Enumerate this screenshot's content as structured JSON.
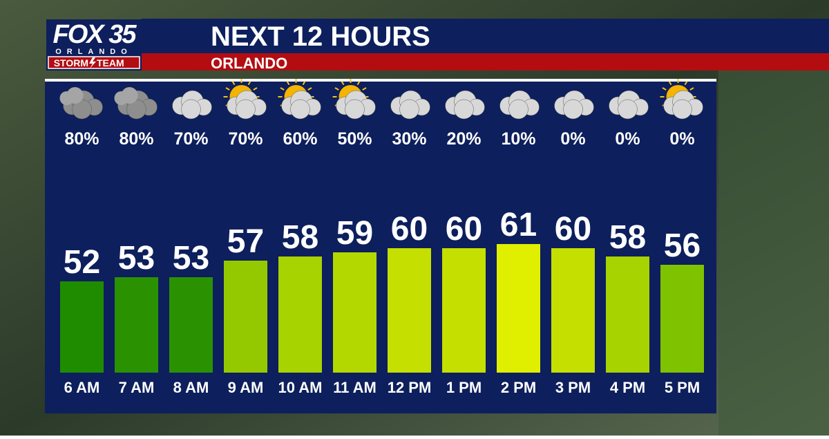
{
  "logo": {
    "station": "FOX 35",
    "city": "ORLANDO",
    "team_left": "STORM",
    "team_right": "TEAM"
  },
  "chart_data": {
    "type": "bar",
    "title": "NEXT 12 HOURS",
    "subtitle": "ORLANDO",
    "categories": [
      "6 AM",
      "7 AM",
      "8 AM",
      "9 AM",
      "10 AM",
      "11 AM",
      "12 PM",
      "1 PM",
      "2 PM",
      "3 PM",
      "4 PM",
      "5 PM"
    ],
    "series": [
      {
        "values": [
          52,
          53,
          53,
          57,
          58,
          59,
          60,
          60,
          61,
          60,
          58,
          56
        ],
        "colors": [
          "#1f8c00",
          "#2a9200",
          "#2a9200",
          "#94c900",
          "#a7d300",
          "#b2d800",
          "#c4df00",
          "#c4df00",
          "#e0ef00",
          "#c4df00",
          "#a7d300",
          "#7fc200"
        ]
      }
    ],
    "precipitation": {
      "values": [
        80,
        80,
        70,
        70,
        60,
        50,
        30,
        20,
        10,
        0,
        0,
        0
      ],
      "value_labels": [
        "80%",
        "80%",
        "70%",
        "70%",
        "60%",
        "50%",
        "30%",
        "20%",
        "10%",
        "0%",
        "0%",
        "0%"
      ]
    },
    "ylim": [
      30,
      64
    ]
  }
}
